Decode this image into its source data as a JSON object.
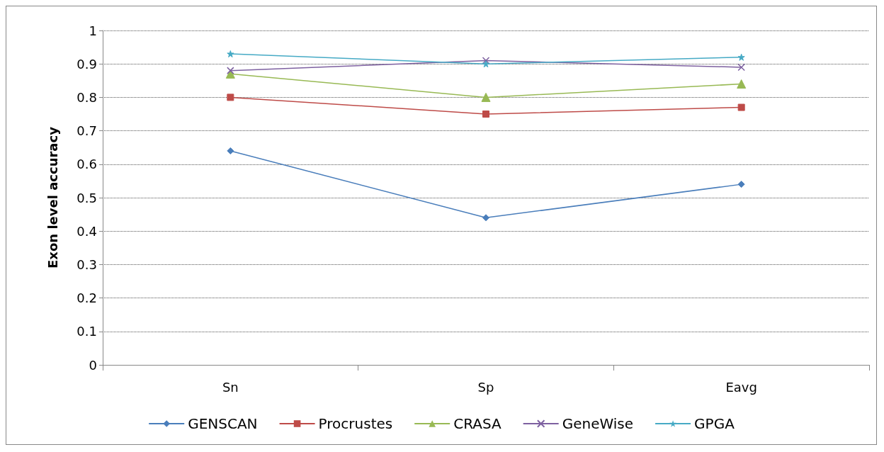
{
  "chart_data": {
    "type": "line",
    "ylabel": "Exon level accuracy",
    "categories": [
      "Sn",
      "Sp",
      "Eavg"
    ],
    "series": [
      {
        "name": "GENSCAN",
        "color": "#4a7ebb",
        "marker": "diamond",
        "values": [
          0.64,
          0.44,
          0.54
        ]
      },
      {
        "name": "Procrustes",
        "color": "#be4b48",
        "marker": "square",
        "values": [
          0.8,
          0.75,
          0.77
        ]
      },
      {
        "name": "CRASA",
        "color": "#98b954",
        "marker": "triangle",
        "values": [
          0.87,
          0.8,
          0.84
        ]
      },
      {
        "name": "GeneWise",
        "color": "#7d60a0",
        "marker": "cross",
        "values": [
          0.88,
          0.91,
          0.89
        ]
      },
      {
        "name": "GPGA",
        "color": "#46aac5",
        "marker": "star",
        "values": [
          0.93,
          0.9,
          0.92
        ]
      }
    ],
    "ylim": [
      0,
      1
    ],
    "yticks": [
      0,
      0.1,
      0.2,
      0.3,
      0.4,
      0.5,
      0.6,
      0.7,
      0.8,
      0.9,
      1
    ],
    "grid": "y",
    "legend": "bottom",
    "line_style": "solid"
  }
}
